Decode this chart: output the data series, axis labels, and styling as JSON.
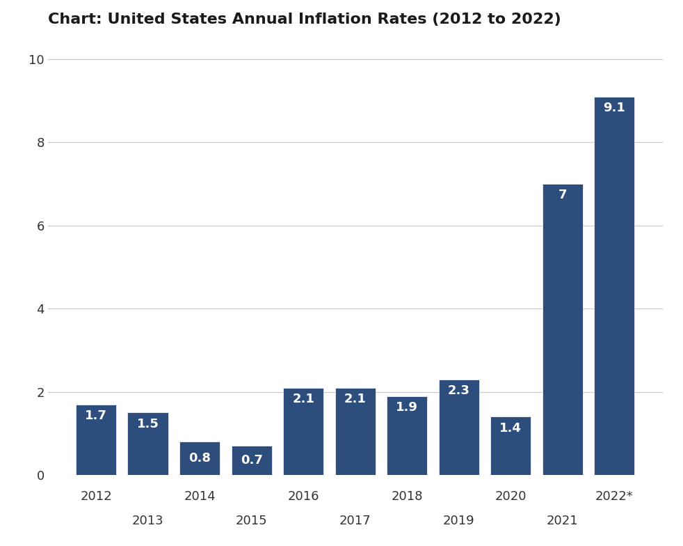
{
  "title": "Chart: United States Annual Inflation Rates (2012 to 2022)",
  "categories": [
    "2012",
    "2013",
    "2014",
    "2015",
    "2016",
    "2017",
    "2018",
    "2019",
    "2020",
    "2021",
    "2022*"
  ],
  "values": [
    1.7,
    1.5,
    0.8,
    0.7,
    2.1,
    2.1,
    1.9,
    2.3,
    1.4,
    7.0,
    9.1
  ],
  "value_labels": [
    "1.7",
    "1.5",
    "0.8",
    "0.7",
    "2.1",
    "2.1",
    "1.9",
    "2.3",
    "1.4",
    "7",
    "9.1"
  ],
  "bar_color": "#2d4d7c",
  "label_color": "#ffffff",
  "background_color": "#ffffff",
  "ylim": [
    0,
    10.5
  ],
  "yticks": [
    0,
    2,
    4,
    6,
    8,
    10
  ],
  "title_fontsize": 16,
  "label_fontsize": 13,
  "tick_fontsize": 13,
  "grid_color": "#c8c8c8",
  "bar_width": 0.78
}
